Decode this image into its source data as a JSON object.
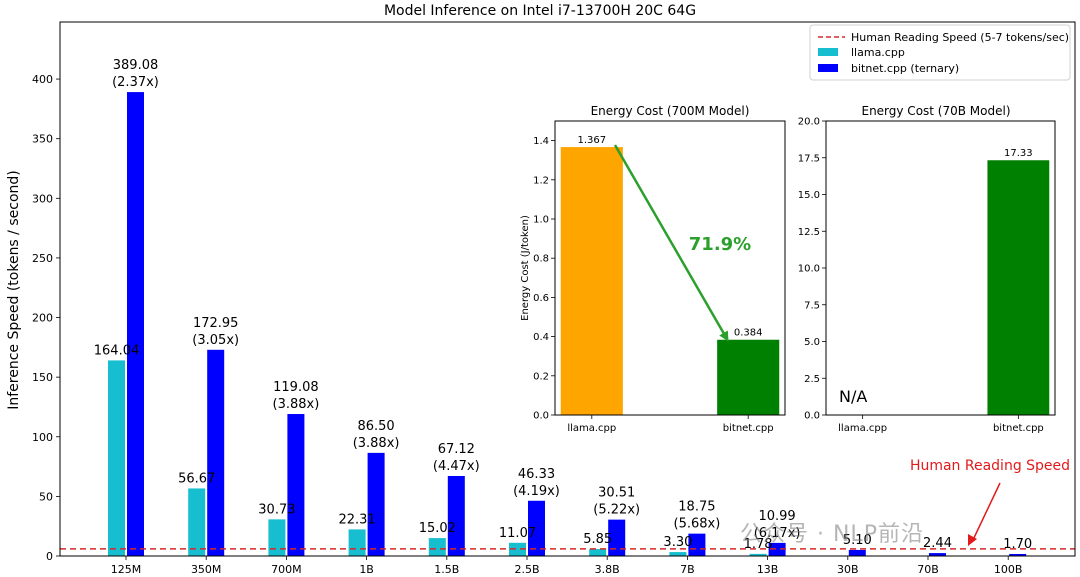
{
  "chart_data": [
    {
      "type": "bar",
      "title": "Model Inference on Intel i7-13700H 20C 64G",
      "ylabel": "Inference Speed (tokens / second)",
      "xlabel": "",
      "ylim": [
        0,
        430
      ],
      "yticks": [
        0,
        50,
        100,
        150,
        200,
        250,
        300,
        350,
        400
      ],
      "categories": [
        "125M",
        "350M",
        "700M",
        "1B",
        "1.5B",
        "2.5B",
        "3.8B",
        "7B",
        "13B",
        "30B",
        "70B",
        "100B"
      ],
      "series": [
        {
          "name": "llama.cpp",
          "color": "#17becf",
          "values": [
            164.04,
            56.67,
            30.73,
            22.31,
            15.02,
            11.07,
            5.85,
            3.3,
            1.78,
            null,
            null,
            null
          ],
          "labels": [
            "164.04",
            "56.67",
            "30.73",
            "22.31",
            "15.02",
            "11.07",
            "5.85",
            "3.30",
            "1.78",
            "",
            "",
            ""
          ]
        },
        {
          "name": "bitnet.cpp (ternary)",
          "color": "#0000ff",
          "values": [
            389.08,
            172.95,
            119.08,
            86.5,
            67.12,
            46.33,
            30.51,
            18.75,
            10.99,
            5.1,
            2.44,
            1.7
          ],
          "labels": [
            "389.08\n(2.37x)",
            "172.95\n(3.05x)",
            "119.08\n(3.88x)",
            "86.50\n(3.88x)",
            "67.12\n(4.47x)",
            "46.33\n(4.19x)",
            "30.51\n(5.22x)",
            "18.75\n(5.68x)",
            "10.99\n(6.17x)",
            "5.10",
            "2.44",
            "1.70"
          ]
        }
      ],
      "reference_line": {
        "name": "Human Reading Speed (5-7 tokens/sec)",
        "value": 6,
        "color": "#d62728",
        "style": "dashed"
      },
      "annotation": {
        "text": "Human Reading Speed",
        "color": "#e31a1c"
      },
      "legend": "top-right",
      "grid": false
    },
    {
      "type": "bar",
      "title": "Energy Cost (700M Model)",
      "ylabel": "Energy Cost (J/token)",
      "categories": [
        "llama.cpp",
        "bitnet.cpp"
      ],
      "values": [
        1.367,
        0.384
      ],
      "colors": [
        "#ffa500",
        "#008000"
      ],
      "labels": [
        "1.367",
        "0.384"
      ],
      "ylim": [
        0,
        1.5
      ],
      "yticks": [
        "0.0",
        "0.2",
        "0.4",
        "0.6",
        "0.8",
        "1.0",
        "1.2",
        "1.4"
      ],
      "annotation": {
        "text": "71.9%",
        "color": "#2ca02c"
      },
      "grid": false
    },
    {
      "type": "bar",
      "title": "Energy Cost (70B Model)",
      "categories": [
        "llama.cpp",
        "bitnet.cpp"
      ],
      "values": [
        null,
        17.33
      ],
      "colors": [
        "#ffa500",
        "#008000"
      ],
      "labels": [
        "",
        "17.33"
      ],
      "ylim": [
        0,
        20
      ],
      "yticks": [
        "0.0",
        "2.5",
        "5.0",
        "7.5",
        "10.0",
        "12.5",
        "15.0",
        "17.5",
        "20.0"
      ],
      "annotation": {
        "text": "N/A"
      },
      "grid": false
    }
  ],
  "watermark": "公众号 · NLP前沿"
}
